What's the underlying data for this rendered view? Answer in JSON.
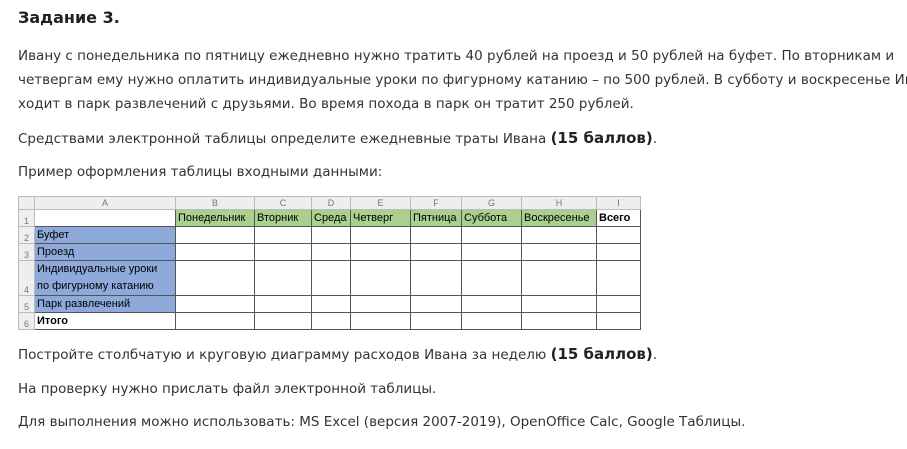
{
  "title": "Задание 3.",
  "p1": "Ивану с понедельника по пятницу ежедневно нужно тратить 40 рублей на проезд и 50 рублей на буфет. По вторникам и",
  "p2": "четвергам ему нужно оплатить индивидуальные уроки по фигурному катанию – по 500 рублей. В субботу и воскресенье Иван",
  "p3": "ходит в парк развлечений с друзьями. Во время похода в парк он тратит 250 рублей.",
  "task1": "Средствами электронной таблицы определите ежедневные траты Ивана ",
  "task1_points": "(15 баллов)",
  "example": "Пример оформления таблицы входными данными:",
  "sheet": {
    "columns": [
      "A",
      "B",
      "C",
      "D",
      "E",
      "F",
      "G",
      "H",
      "I"
    ],
    "rows": [
      "1",
      "2",
      "3",
      "4",
      "5",
      "6"
    ],
    "header": [
      "Понедельник",
      "Вторник",
      "Среда",
      "Четверг",
      "Пятница",
      "Суббота",
      "Воскресенье",
      "Всего"
    ],
    "labels": [
      "Буфет",
      "Проезд",
      "Индивидуальные уроки",
      "по фигурному катанию",
      "Парк развлечений",
      "Итого"
    ],
    "header_color": "#a9d08e",
    "label_color": "#8eaadb"
  },
  "task2": "Постройте столбчатую и круговую диаграмму расходов Ивана за неделю ",
  "task2_points": "(15 баллов)",
  "note1": "На проверку нужно прислать файл электронной таблицы.",
  "note2": "Для выполнения можно использовать: MS Excel (версия 2007-2019), OpenOffice Calc, Google Таблицы."
}
